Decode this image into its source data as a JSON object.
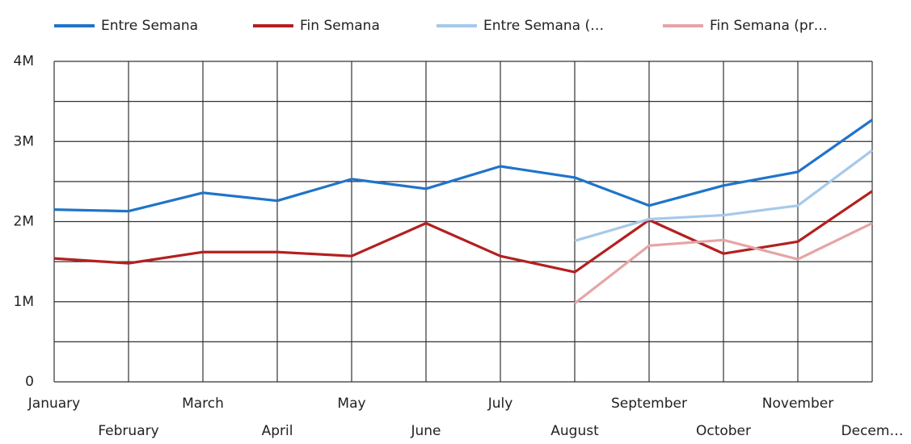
{
  "chart_data": {
    "type": "line",
    "categories": [
      "January",
      "February",
      "March",
      "April",
      "May",
      "June",
      "July",
      "August",
      "September",
      "October",
      "November",
      "Decem…"
    ],
    "series": [
      {
        "name": "Entre Semana",
        "color": "#1f74c9",
        "values": [
          2150000,
          2130000,
          2360000,
          2260000,
          2530000,
          2410000,
          2690000,
          2550000,
          2200000,
          2450000,
          2620000,
          3270000
        ]
      },
      {
        "name": "Fin Semana",
        "color": "#b3201f",
        "values": [
          1540000,
          1480000,
          1620000,
          1620000,
          1570000,
          1980000,
          1570000,
          1370000,
          2020000,
          1600000,
          1750000,
          2380000
        ]
      },
      {
        "name": "Entre Semana (…",
        "color": "#a5c9ea",
        "values": [
          null,
          null,
          null,
          null,
          null,
          null,
          null,
          1760000,
          2030000,
          2080000,
          2200000,
          2890000
        ]
      },
      {
        "name": "Fin Semana (pr…",
        "color": "#e6a4a7",
        "values": [
          null,
          null,
          null,
          null,
          null,
          null,
          null,
          980000,
          1700000,
          1770000,
          1530000,
          1980000
        ]
      }
    ],
    "ylim": [
      0,
      4000000
    ],
    "yticks": [
      {
        "value": 0,
        "label": "0"
      },
      {
        "value": 1000000,
        "label": "1M"
      },
      {
        "value": 2000000,
        "label": "2M"
      },
      {
        "value": 3000000,
        "label": "3M"
      },
      {
        "value": 4000000,
        "label": "4M"
      }
    ],
    "yminor_ticks": [
      500000,
      1500000,
      2500000,
      3500000
    ],
    "grid": true,
    "legend": "top"
  }
}
